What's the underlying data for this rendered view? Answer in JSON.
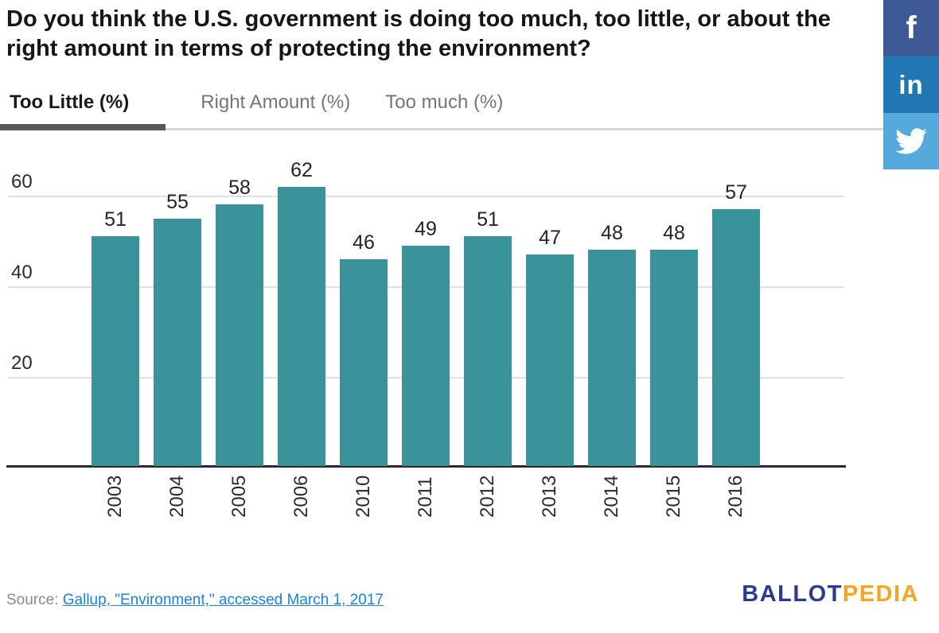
{
  "title": "Do you think the U.S. government is doing too much, too little, or about the right amount in terms of protecting the environment?",
  "tabs": [
    {
      "label": "Too Little (%)",
      "active": true
    },
    {
      "label": "Right Amount (%)",
      "active": false
    },
    {
      "label": "Too much (%)",
      "active": false
    }
  ],
  "social": [
    {
      "name": "facebook",
      "color": "#3d5a96"
    },
    {
      "name": "linkedin",
      "color": "#2077b4"
    },
    {
      "name": "twitter",
      "color": "#55a9dd"
    }
  ],
  "chart_data": {
    "type": "bar",
    "title": "Do you think the U.S. government is doing too much, too little, or about the right amount in terms of protecting the environment?",
    "series_name": "Too Little (%)",
    "categories": [
      "2003",
      "2004",
      "2005",
      "2006",
      "2010",
      "2011",
      "2012",
      "2013",
      "2014",
      "2015",
      "2016"
    ],
    "values": [
      51,
      55,
      58,
      62,
      46,
      49,
      51,
      47,
      48,
      48,
      57
    ],
    "yticks": [
      20,
      40,
      60
    ],
    "ylim": [
      0,
      65
    ],
    "grid": true,
    "legend_position": "none",
    "bar_color": "#3a929b",
    "value_labels_shown": true
  },
  "footer": {
    "source_label": "Source:",
    "source_link": "Gallup, \"Environment,\" accessed March 1, 2017",
    "brand_part1": "BALLOT",
    "brand_part2": "PEDIA",
    "brand_color1": "#2b3a94",
    "brand_color2": "#f6a51f",
    "link_color": "#1e80d8"
  }
}
